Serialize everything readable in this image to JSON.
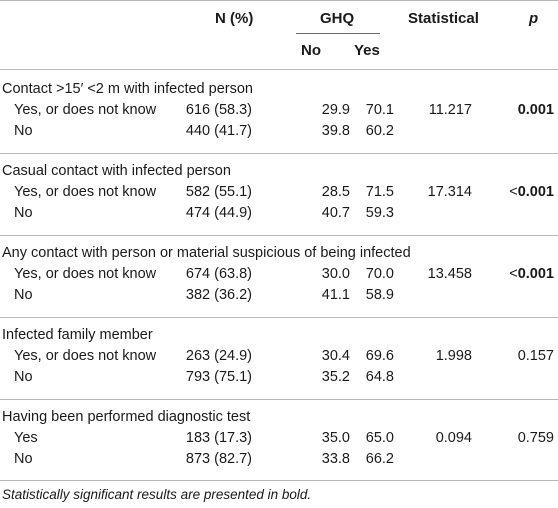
{
  "header": {
    "n_label": "N (%)",
    "ghq_label": "GHQ",
    "no_label": "No",
    "yes_label": "Yes",
    "stat_label": "Statistical",
    "p_label": "p"
  },
  "sections": [
    {
      "title": "Contact >15′ <2 m with infected person",
      "rows": [
        {
          "label": "Yes, or does not know",
          "n": "616 (58.3)",
          "no": "29.9",
          "yes": "70.1",
          "stat": "11.217",
          "p_prefix": "",
          "p": "0.001",
          "p_bold": true
        },
        {
          "label": "No",
          "n": "440 (41.7)",
          "no": "39.8",
          "yes": "60.2",
          "stat": "",
          "p_prefix": "",
          "p": "",
          "p_bold": false
        }
      ]
    },
    {
      "title": "Casual contact with infected person",
      "rows": [
        {
          "label": "Yes, or does not know",
          "n": "582 (55.1)",
          "no": "28.5",
          "yes": "71.5",
          "stat": "17.314",
          "p_prefix": "<",
          "p": "0.001",
          "p_bold": true
        },
        {
          "label": "No",
          "n": "474 (44.9)",
          "no": "40.7",
          "yes": "59.3",
          "stat": "",
          "p_prefix": "",
          "p": "",
          "p_bold": false
        }
      ]
    },
    {
      "title": "Any contact with person or material suspicious of being infected",
      "rows": [
        {
          "label": "Yes, or does not know",
          "n": "674 (63.8)",
          "no": "30.0",
          "yes": "70.0",
          "stat": "13.458",
          "p_prefix": "<",
          "p": "0.001",
          "p_bold": true
        },
        {
          "label": "No",
          "n": "382 (36.2)",
          "no": "41.1",
          "yes": "58.9",
          "stat": "",
          "p_prefix": "",
          "p": "",
          "p_bold": false
        }
      ]
    },
    {
      "title": "Infected family member",
      "rows": [
        {
          "label": "Yes, or does not know",
          "n": "263 (24.9)",
          "no": "30.4",
          "yes": "69.6",
          "stat": "1.998",
          "p_prefix": "",
          "p": "0.157",
          "p_bold": false
        },
        {
          "label": "No",
          "n": "793 (75.1)",
          "no": "35.2",
          "yes": "64.8",
          "stat": "",
          "p_prefix": "",
          "p": "",
          "p_bold": false
        }
      ]
    },
    {
      "title": "Having been performed diagnostic test",
      "rows": [
        {
          "label": "Yes",
          "n": "183 (17.3)",
          "no": "35.0",
          "yes": "65.0",
          "stat": "0.094",
          "p_prefix": "",
          "p": "0.759",
          "p_bold": false
        },
        {
          "label": "No",
          "n": "873 (82.7)",
          "no": "33.8",
          "yes": "66.2",
          "stat": "",
          "p_prefix": "",
          "p": "",
          "p_bold": false
        }
      ]
    }
  ],
  "footnote": "Statistically significant results are presented in bold."
}
